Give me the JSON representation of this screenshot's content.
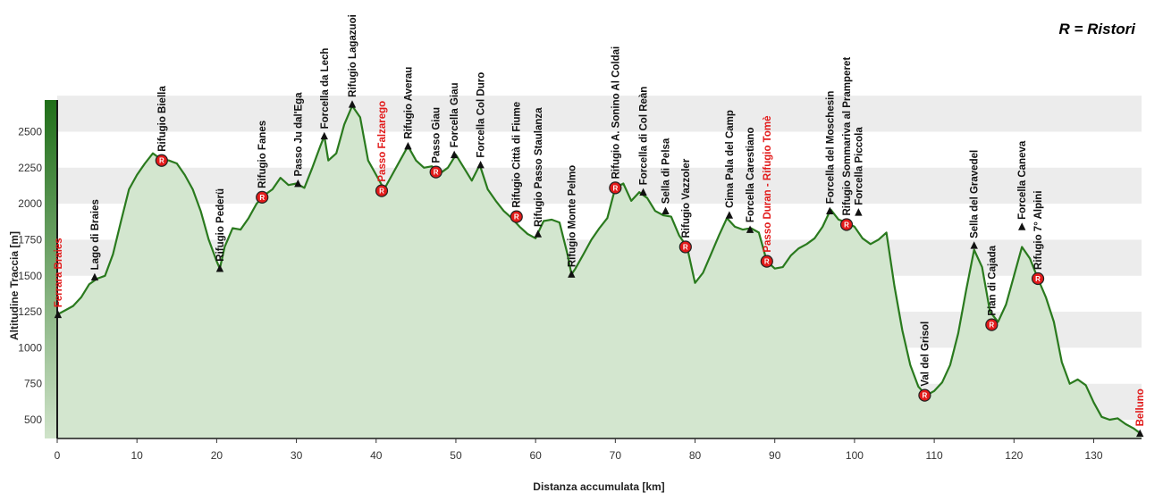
{
  "chart_data": {
    "type": "area",
    "title": "",
    "legend_note": "R = Ristori",
    "xlabel": "Distanza accumulata [km]",
    "ylabel": "Altitudine Traccia [m]",
    "xlim": [
      0,
      136
    ],
    "ylim": [
      370,
      2720
    ],
    "x_ticks": [
      0,
      10,
      20,
      30,
      40,
      50,
      60,
      70,
      80,
      90,
      100,
      110,
      120,
      130
    ],
    "y_ticks": [
      500,
      750,
      1000,
      1250,
      1500,
      1750,
      2000,
      2250,
      2500
    ],
    "colors": {
      "line": "#2a7a1e",
      "fill": "#d3e6cf",
      "band": "#ececec",
      "accent": "#e21a1a",
      "label": "#111111",
      "ristoro_fill": "#e21a1a"
    },
    "profile": [
      [
        0,
        1230
      ],
      [
        1,
        1260
      ],
      [
        2,
        1290
      ],
      [
        3,
        1350
      ],
      [
        4,
        1440
      ],
      [
        5,
        1480
      ],
      [
        6,
        1500
      ],
      [
        7,
        1650
      ],
      [
        8,
        1880
      ],
      [
        9,
        2100
      ],
      [
        10,
        2200
      ],
      [
        11,
        2280
      ],
      [
        12,
        2350
      ],
      [
        13,
        2310
      ],
      [
        14,
        2300
      ],
      [
        15,
        2280
      ],
      [
        16,
        2200
      ],
      [
        17,
        2100
      ],
      [
        18,
        1950
      ],
      [
        19,
        1750
      ],
      [
        20,
        1600
      ],
      [
        20.4,
        1550
      ],
      [
        21,
        1700
      ],
      [
        22,
        1830
      ],
      [
        23,
        1820
      ],
      [
        24,
        1900
      ],
      [
        25,
        2000
      ],
      [
        26,
        2060
      ],
      [
        27,
        2100
      ],
      [
        28,
        2180
      ],
      [
        29,
        2130
      ],
      [
        30,
        2140
      ],
      [
        31,
        2110
      ],
      [
        32,
        2250
      ],
      [
        33,
        2400
      ],
      [
        33.5,
        2470
      ],
      [
        34,
        2300
      ],
      [
        35,
        2350
      ],
      [
        36,
        2550
      ],
      [
        37,
        2680
      ],
      [
        38,
        2600
      ],
      [
        39,
        2300
      ],
      [
        40,
        2200
      ],
      [
        41,
        2100
      ],
      [
        42,
        2200
      ],
      [
        43,
        2300
      ],
      [
        44,
        2400
      ],
      [
        45,
        2300
      ],
      [
        46,
        2250
      ],
      [
        47,
        2260
      ],
      [
        48,
        2210
      ],
      [
        49,
        2250
      ],
      [
        50,
        2340
      ],
      [
        51,
        2250
      ],
      [
        52,
        2160
      ],
      [
        53,
        2270
      ],
      [
        54,
        2100
      ],
      [
        55,
        2020
      ],
      [
        56,
        1950
      ],
      [
        57,
        1900
      ],
      [
        58,
        1840
      ],
      [
        59,
        1790
      ],
      [
        60,
        1760
      ],
      [
        61,
        1880
      ],
      [
        62,
        1890
      ],
      [
        63,
        1870
      ],
      [
        64,
        1650
      ],
      [
        64.5,
        1510
      ],
      [
        65,
        1550
      ],
      [
        66,
        1650
      ],
      [
        67,
        1750
      ],
      [
        68,
        1830
      ],
      [
        69,
        1900
      ],
      [
        70,
        2110
      ],
      [
        71,
        2140
      ],
      [
        72,
        2020
      ],
      [
        73,
        2080
      ],
      [
        74,
        2040
      ],
      [
        75,
        1950
      ],
      [
        76,
        1920
      ],
      [
        77,
        1910
      ],
      [
        78,
        1780
      ],
      [
        79,
        1700
      ],
      [
        80,
        1450
      ],
      [
        81,
        1520
      ],
      [
        82,
        1650
      ],
      [
        83,
        1780
      ],
      [
        84,
        1900
      ],
      [
        85,
        1840
      ],
      [
        86,
        1820
      ],
      [
        87,
        1830
      ],
      [
        88,
        1800
      ],
      [
        89,
        1600
      ],
      [
        90,
        1550
      ],
      [
        91,
        1560
      ],
      [
        92,
        1640
      ],
      [
        93,
        1690
      ],
      [
        94,
        1720
      ],
      [
        95,
        1760
      ],
      [
        96,
        1840
      ],
      [
        97,
        1960
      ],
      [
        98,
        1890
      ],
      [
        99,
        1870
      ],
      [
        100,
        1840
      ],
      [
        101,
        1760
      ],
      [
        102,
        1720
      ],
      [
        103,
        1750
      ],
      [
        104,
        1800
      ],
      [
        105,
        1430
      ],
      [
        106,
        1120
      ],
      [
        107,
        880
      ],
      [
        108,
        730
      ],
      [
        109,
        670
      ],
      [
        110,
        700
      ],
      [
        111,
        760
      ],
      [
        112,
        880
      ],
      [
        113,
        1100
      ],
      [
        114,
        1400
      ],
      [
        115,
        1680
      ],
      [
        116,
        1560
      ],
      [
        117,
        1250
      ],
      [
        118,
        1180
      ],
      [
        119,
        1300
      ],
      [
        120,
        1500
      ],
      [
        121,
        1700
      ],
      [
        122,
        1620
      ],
      [
        123,
        1480
      ],
      [
        124,
        1350
      ],
      [
        125,
        1180
      ],
      [
        126,
        900
      ],
      [
        127,
        750
      ],
      [
        128,
        780
      ],
      [
        129,
        740
      ],
      [
        130,
        620
      ],
      [
        131,
        520
      ],
      [
        132,
        500
      ],
      [
        133,
        510
      ],
      [
        134,
        470
      ],
      [
        135,
        440
      ],
      [
        136,
        400
      ]
    ],
    "waypoints": [
      {
        "name": "Ferrara Braies",
        "x": 0.1,
        "y": 1230,
        "kind": "endpoint"
      },
      {
        "name": "Lago di Braies",
        "x": 4.7,
        "y": 1490,
        "kind": "peak"
      },
      {
        "name": "Rifugio Biella",
        "x": 13.1,
        "y": 2300,
        "kind": "ristoro"
      },
      {
        "name": "Rifugio Pederü",
        "x": 20.4,
        "y": 1550,
        "kind": "peak"
      },
      {
        "name": "Rifugio Fanes",
        "x": 25.7,
        "y": 2045,
        "kind": "ristoro"
      },
      {
        "name": "Passo Ju dal'Ega",
        "x": 30.2,
        "y": 2140,
        "kind": "peak"
      },
      {
        "name": "Forcella da Lech",
        "x": 33.5,
        "y": 2470,
        "kind": "peak"
      },
      {
        "name": "Rifugio Lagazuoi",
        "x": 37.0,
        "y": 2690,
        "kind": "peak"
      },
      {
        "name": "Passo Falzarego",
        "x": 40.7,
        "y": 2090,
        "kind": "ristoro-red"
      },
      {
        "name": "Rifugio Averau",
        "x": 44.0,
        "y": 2400,
        "kind": "peak"
      },
      {
        "name": "Passo Giau",
        "x": 47.5,
        "y": 2220,
        "kind": "ristoro"
      },
      {
        "name": "Forcella Giau",
        "x": 49.8,
        "y": 2340,
        "kind": "peak"
      },
      {
        "name": "Forcella Col Duro",
        "x": 53.1,
        "y": 2270,
        "kind": "peak"
      },
      {
        "name": "Rifugio Città di Fiume",
        "x": 57.6,
        "y": 1910,
        "kind": "ristoro"
      },
      {
        "name": "Rifugio Passo Staulanza",
        "x": 60.3,
        "y": 1790,
        "kind": "peak"
      },
      {
        "name": "Rifugio Monte Pelmo",
        "x": 64.5,
        "y": 1510,
        "kind": "peak"
      },
      {
        "name": "Rifugio A. Sonino Al Coldai",
        "x": 70.0,
        "y": 2110,
        "kind": "ristoro"
      },
      {
        "name": "Forcella di Col Reàn",
        "x": 73.5,
        "y": 2080,
        "kind": "peak"
      },
      {
        "name": "Sella di Pelsa",
        "x": 76.3,
        "y": 1950,
        "kind": "peak"
      },
      {
        "name": "Rifugio Vazzoler",
        "x": 78.8,
        "y": 1700,
        "kind": "ristoro"
      },
      {
        "name": "Cima Pala del Camp",
        "x": 84.3,
        "y": 1920,
        "kind": "peak"
      },
      {
        "name": "Forcella Carestiano",
        "x": 86.9,
        "y": 1820,
        "kind": "peak"
      },
      {
        "name": "Passo Duran - Rifugio Tomè",
        "x": 89.0,
        "y": 1600,
        "kind": "ristoro-red"
      },
      {
        "name": "Forcella del Moschesin",
        "x": 96.9,
        "y": 1950,
        "kind": "peak"
      },
      {
        "name": "Rifugio Sommariva al Pramperet",
        "x": 99.0,
        "y": 1855,
        "kind": "ristoro"
      },
      {
        "name": "Forcella Piccola",
        "x": 100.5,
        "y": 1940,
        "kind": "peak"
      },
      {
        "name": "Val del Grisol",
        "x": 108.8,
        "y": 670,
        "kind": "ristoro"
      },
      {
        "name": "Sella del Gravedel",
        "x": 115.0,
        "y": 1710,
        "kind": "peak"
      },
      {
        "name": "Pian di Cajada",
        "x": 117.2,
        "y": 1160,
        "kind": "ristoro"
      },
      {
        "name": "Forcella Caneva",
        "x": 121.0,
        "y": 1840,
        "kind": "peak"
      },
      {
        "name": "Rifugio 7° Alpini",
        "x": 123.0,
        "y": 1480,
        "kind": "ristoro"
      },
      {
        "name": "Belluno",
        "x": 135.8,
        "y": 405,
        "kind": "endpoint"
      }
    ]
  }
}
